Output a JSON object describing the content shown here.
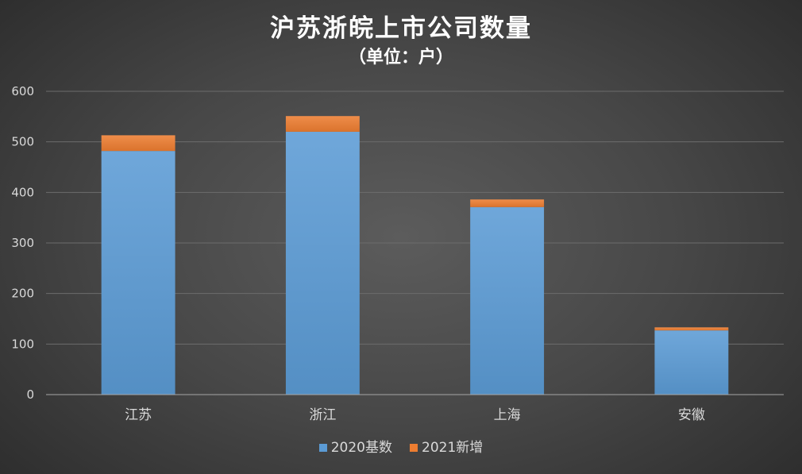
{
  "chart_data": {
    "type": "bar",
    "stacked": true,
    "title": "沪苏浙皖上市公司数量",
    "subtitle": "（单位：户）",
    "categories": [
      "江苏",
      "浙江",
      "上海",
      "安徽"
    ],
    "series": [
      {
        "name": "2020基数",
        "values": [
          482,
          520,
          371,
          127
        ],
        "color": "#5b9bd5"
      },
      {
        "name": "2021新增",
        "values": [
          31,
          31,
          15,
          6
        ],
        "color": "#ed7d31"
      }
    ],
    "ylim": [
      0,
      600
    ],
    "yticks": [
      0,
      100,
      200,
      300,
      400,
      500,
      600
    ],
    "grid": true,
    "legend": "bottom"
  }
}
